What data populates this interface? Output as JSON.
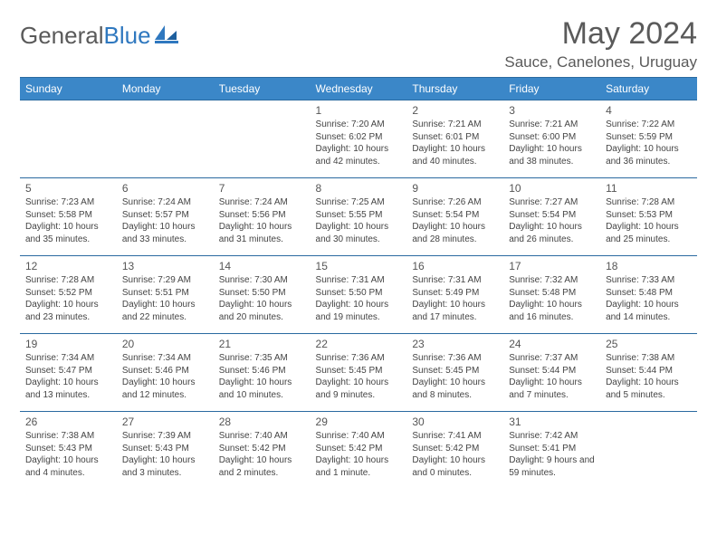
{
  "brand": {
    "part1": "General",
    "part2": "Blue"
  },
  "title": "May 2024",
  "location": "Sauce, Canelones, Uruguay",
  "colors": {
    "header_bg": "#3b87c8",
    "header_text": "#ffffff",
    "border": "#2a6aa0",
    "text": "#444444",
    "title": "#5a5a5a",
    "brand_blue": "#2f78bf"
  },
  "weekdays": [
    "Sunday",
    "Monday",
    "Tuesday",
    "Wednesday",
    "Thursday",
    "Friday",
    "Saturday"
  ],
  "layout": {
    "cols": 7,
    "rows": 5,
    "first_day_col": 3,
    "days_in_month": 31
  },
  "days": [
    {
      "n": 1,
      "sunrise": "7:20 AM",
      "sunset": "6:02 PM",
      "daylight": "10 hours and 42 minutes."
    },
    {
      "n": 2,
      "sunrise": "7:21 AM",
      "sunset": "6:01 PM",
      "daylight": "10 hours and 40 minutes."
    },
    {
      "n": 3,
      "sunrise": "7:21 AM",
      "sunset": "6:00 PM",
      "daylight": "10 hours and 38 minutes."
    },
    {
      "n": 4,
      "sunrise": "7:22 AM",
      "sunset": "5:59 PM",
      "daylight": "10 hours and 36 minutes."
    },
    {
      "n": 5,
      "sunrise": "7:23 AM",
      "sunset": "5:58 PM",
      "daylight": "10 hours and 35 minutes."
    },
    {
      "n": 6,
      "sunrise": "7:24 AM",
      "sunset": "5:57 PM",
      "daylight": "10 hours and 33 minutes."
    },
    {
      "n": 7,
      "sunrise": "7:24 AM",
      "sunset": "5:56 PM",
      "daylight": "10 hours and 31 minutes."
    },
    {
      "n": 8,
      "sunrise": "7:25 AM",
      "sunset": "5:55 PM",
      "daylight": "10 hours and 30 minutes."
    },
    {
      "n": 9,
      "sunrise": "7:26 AM",
      "sunset": "5:54 PM",
      "daylight": "10 hours and 28 minutes."
    },
    {
      "n": 10,
      "sunrise": "7:27 AM",
      "sunset": "5:54 PM",
      "daylight": "10 hours and 26 minutes."
    },
    {
      "n": 11,
      "sunrise": "7:28 AM",
      "sunset": "5:53 PM",
      "daylight": "10 hours and 25 minutes."
    },
    {
      "n": 12,
      "sunrise": "7:28 AM",
      "sunset": "5:52 PM",
      "daylight": "10 hours and 23 minutes."
    },
    {
      "n": 13,
      "sunrise": "7:29 AM",
      "sunset": "5:51 PM",
      "daylight": "10 hours and 22 minutes."
    },
    {
      "n": 14,
      "sunrise": "7:30 AM",
      "sunset": "5:50 PM",
      "daylight": "10 hours and 20 minutes."
    },
    {
      "n": 15,
      "sunrise": "7:31 AM",
      "sunset": "5:50 PM",
      "daylight": "10 hours and 19 minutes."
    },
    {
      "n": 16,
      "sunrise": "7:31 AM",
      "sunset": "5:49 PM",
      "daylight": "10 hours and 17 minutes."
    },
    {
      "n": 17,
      "sunrise": "7:32 AM",
      "sunset": "5:48 PM",
      "daylight": "10 hours and 16 minutes."
    },
    {
      "n": 18,
      "sunrise": "7:33 AM",
      "sunset": "5:48 PM",
      "daylight": "10 hours and 14 minutes."
    },
    {
      "n": 19,
      "sunrise": "7:34 AM",
      "sunset": "5:47 PM",
      "daylight": "10 hours and 13 minutes."
    },
    {
      "n": 20,
      "sunrise": "7:34 AM",
      "sunset": "5:46 PM",
      "daylight": "10 hours and 12 minutes."
    },
    {
      "n": 21,
      "sunrise": "7:35 AM",
      "sunset": "5:46 PM",
      "daylight": "10 hours and 10 minutes."
    },
    {
      "n": 22,
      "sunrise": "7:36 AM",
      "sunset": "5:45 PM",
      "daylight": "10 hours and 9 minutes."
    },
    {
      "n": 23,
      "sunrise": "7:36 AM",
      "sunset": "5:45 PM",
      "daylight": "10 hours and 8 minutes."
    },
    {
      "n": 24,
      "sunrise": "7:37 AM",
      "sunset": "5:44 PM",
      "daylight": "10 hours and 7 minutes."
    },
    {
      "n": 25,
      "sunrise": "7:38 AM",
      "sunset": "5:44 PM",
      "daylight": "10 hours and 5 minutes."
    },
    {
      "n": 26,
      "sunrise": "7:38 AM",
      "sunset": "5:43 PM",
      "daylight": "10 hours and 4 minutes."
    },
    {
      "n": 27,
      "sunrise": "7:39 AM",
      "sunset": "5:43 PM",
      "daylight": "10 hours and 3 minutes."
    },
    {
      "n": 28,
      "sunrise": "7:40 AM",
      "sunset": "5:42 PM",
      "daylight": "10 hours and 2 minutes."
    },
    {
      "n": 29,
      "sunrise": "7:40 AM",
      "sunset": "5:42 PM",
      "daylight": "10 hours and 1 minute."
    },
    {
      "n": 30,
      "sunrise": "7:41 AM",
      "sunset": "5:42 PM",
      "daylight": "10 hours and 0 minutes."
    },
    {
      "n": 31,
      "sunrise": "7:42 AM",
      "sunset": "5:41 PM",
      "daylight": "9 hours and 59 minutes."
    }
  ]
}
